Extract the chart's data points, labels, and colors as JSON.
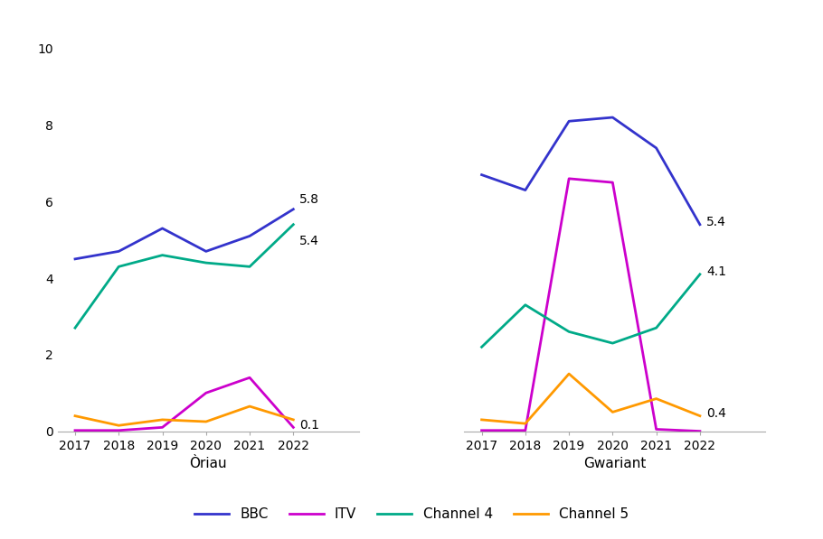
{
  "years": [
    2017,
    2018,
    2019,
    2020,
    2021,
    2022
  ],
  "oriau": {
    "BBC": [
      4.5,
      4.7,
      5.3,
      4.7,
      5.1,
      5.8
    ],
    "ITV": [
      0.02,
      0.02,
      0.1,
      1.0,
      1.4,
      0.1
    ],
    "Channel4": [
      2.7,
      4.3,
      4.6,
      4.4,
      4.3,
      5.4
    ],
    "Channel5": [
      0.4,
      0.15,
      0.3,
      0.25,
      0.65,
      0.3
    ]
  },
  "gwariant": {
    "BBC": [
      6.7,
      6.3,
      8.1,
      8.2,
      7.4,
      5.4
    ],
    "ITV": [
      0.02,
      0.02,
      6.6,
      6.5,
      0.05,
      0.0
    ],
    "Channel4": [
      2.2,
      3.3,
      2.6,
      2.3,
      2.7,
      4.1
    ],
    "Channel5": [
      0.3,
      0.2,
      1.5,
      0.5,
      0.85,
      0.4
    ]
  },
  "colors": {
    "BBC": "#3333cc",
    "ITV": "#cc00cc",
    "Channel4": "#00aa88",
    "Channel5": "#ff9900"
  },
  "labels": {
    "BBC": "BBC",
    "ITV": "ITV",
    "Channel4": "Channel 4",
    "Channel5": "Channel 5"
  },
  "xlabel_left": "Òriau",
  "xlabel_right": "Gwariant",
  "ylim": [
    0,
    10
  ],
  "yticks": [
    0,
    2,
    4,
    6,
    8,
    10
  ]
}
